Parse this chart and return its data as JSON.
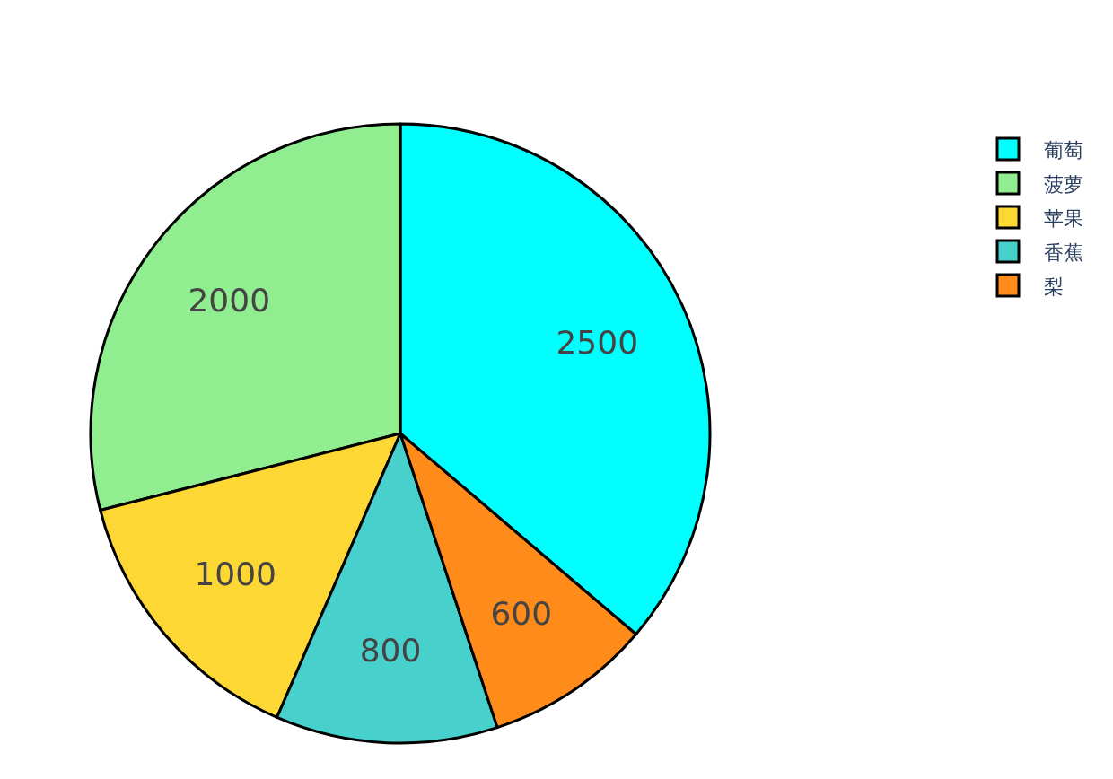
{
  "chart_data": {
    "type": "pie",
    "categories": [
      "葡萄",
      "菠萝",
      "苹果",
      "香蕉",
      "梨"
    ],
    "values": [
      2500,
      2000,
      1000,
      800,
      600
    ],
    "colors": [
      "#00ffff",
      "#90ee90",
      "#fdd835",
      "#48d1cc",
      "#ff8c1a"
    ],
    "data_labels": true,
    "legend": "top right"
  }
}
